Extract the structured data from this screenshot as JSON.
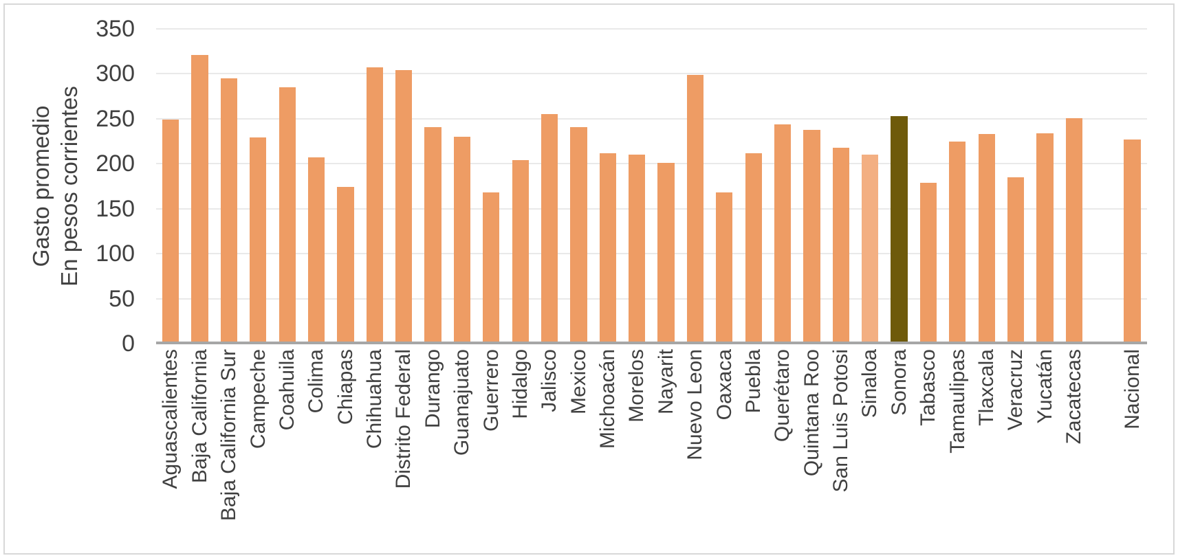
{
  "chart_data": {
    "type": "bar",
    "title": "",
    "ylabel_line1": "Gasto promedio",
    "ylabel_line2": "En pesos corrientes",
    "xlabel": "",
    "ylim": [
      0,
      350
    ],
    "y_ticks": [
      0,
      50,
      100,
      150,
      200,
      250,
      300,
      350
    ],
    "grid": "horizontal-light",
    "legend": "none",
    "categories": [
      "Aguascalientes",
      "Baja California",
      "Baja California Sur",
      "Campeche",
      "Coahuila",
      "Colima",
      "Chiapas",
      "Chihuahua",
      "Distrito Federal",
      "Durango",
      "Guanajuato",
      "Guerrero",
      "Hidalgo",
      "Jalisco",
      "Mexico",
      "Michoacán",
      "Morelos",
      "Nayarit",
      "Nuevo Leon",
      "Oaxaca",
      "Puebla",
      "Querétaro",
      "Quintana Roo",
      "San Luis Potosi",
      "Sinaloa",
      "Sonora",
      "Tabasco",
      "Tamaulipas",
      "Tlaxcala",
      "Veracruz",
      "Yucatán",
      "Zacatecas",
      "Nacional"
    ],
    "values": [
      249,
      321,
      295,
      229,
      285,
      207,
      174,
      307,
      304,
      241,
      230,
      168,
      204,
      255,
      241,
      212,
      210,
      201,
      299,
      168,
      212,
      244,
      238,
      218,
      210,
      253,
      179,
      225,
      233,
      185,
      234,
      251,
      227
    ],
    "gap_before_index": 32,
    "bar_variants": {
      "Sinaloa": "light",
      "Sonora": "dark"
    }
  },
  "colors": {
    "bar_default": "#EE9C64",
    "bar_light": "#F3AF82",
    "bar_dark": "#6E5A0B",
    "axis_line": "#A6A6A6",
    "gridline": "#E9E9E9",
    "text": "#404040",
    "frame_border": "#D8D8D8",
    "background": "#FFFFFF"
  }
}
